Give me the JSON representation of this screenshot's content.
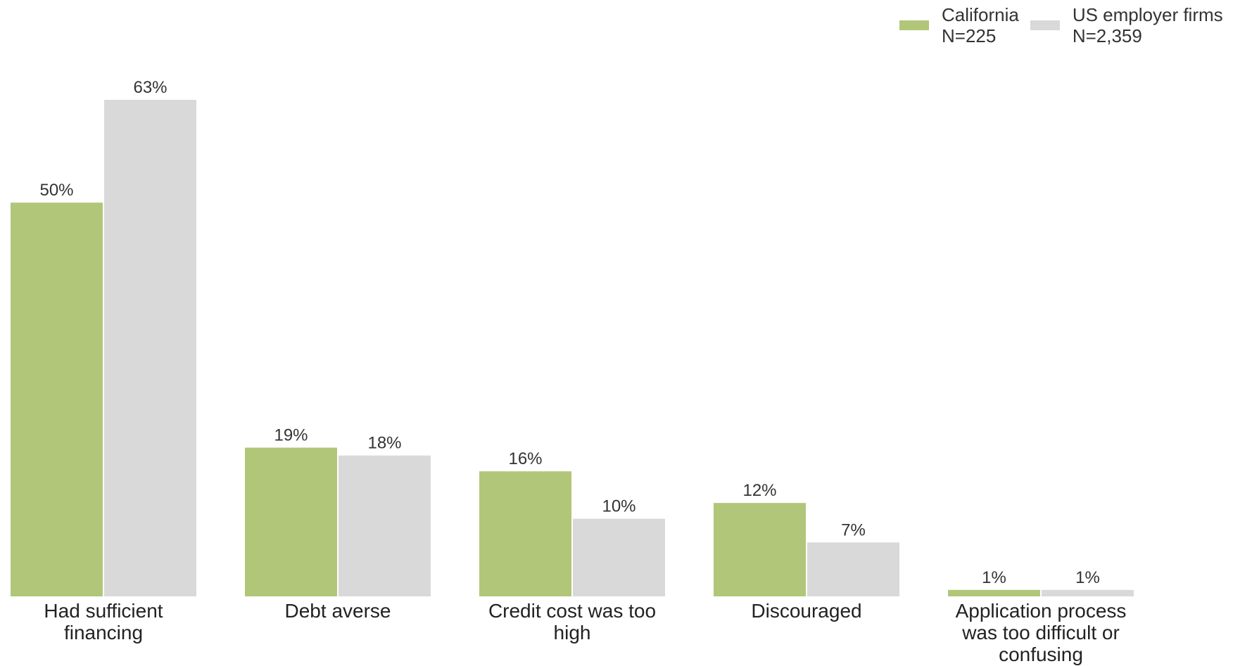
{
  "legend": [
    {
      "name": "California",
      "sub": "N=225",
      "color": "#b2c679"
    },
    {
      "name": "US employer firms",
      "sub": "N=2,359",
      "color": "#d9d9d9"
    }
  ],
  "chart_data": {
    "type": "bar",
    "categories": [
      [
        "Had sufficient",
        "financing"
      ],
      [
        "Debt averse"
      ],
      [
        "Credit cost was too",
        "high"
      ],
      [
        "Discouraged"
      ],
      [
        "Application process",
        "was too difficult or",
        "confusing"
      ]
    ],
    "series": [
      {
        "name": "California N=225",
        "color": "#b2c679",
        "values": [
          50,
          19,
          16,
          12,
          1
        ],
        "labels": [
          "50%",
          "19%",
          "16%",
          "12%",
          "1%"
        ]
      },
      {
        "name": "US employer firms N=2,359",
        "color": "#d9d9d9",
        "values": [
          63,
          18,
          10,
          7,
          1
        ],
        "labels": [
          "63%",
          "18%",
          "10%",
          "7%",
          "1%"
        ]
      }
    ],
    "ylim": [
      0,
      63
    ],
    "grid": false,
    "legend_position": "top-right"
  }
}
